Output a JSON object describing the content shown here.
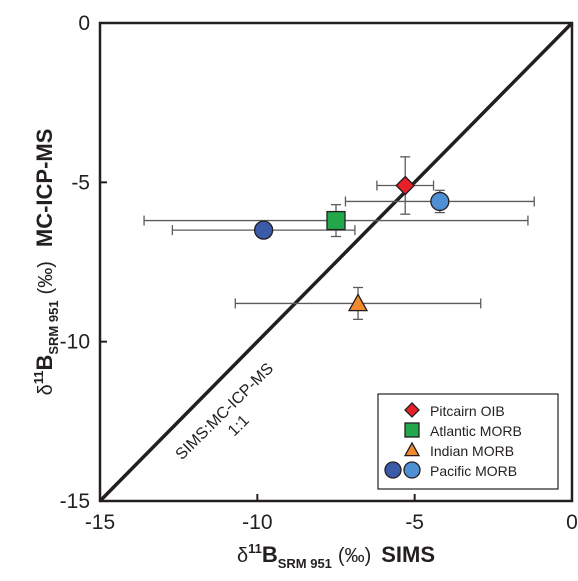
{
  "chart_data": {
    "type": "scatter",
    "xlim": [
      -15,
      0
    ],
    "ylim": [
      -15,
      0
    ],
    "xticks": [
      "-15",
      "-10",
      "-5",
      "0"
    ],
    "yticks": [
      "0",
      "-5",
      "-10",
      "-15"
    ],
    "xlabel": {
      "delta": "δ",
      "super": "11",
      "main": "B",
      "sub": "SRM 951",
      "unit": "(‰)",
      "method": "SIMS"
    },
    "ylabel": {
      "delta": "δ",
      "super": "11",
      "main": "B",
      "sub": "SRM 951",
      "unit": "(‰)",
      "method": "MC-ICP-MS"
    },
    "reference_line": {
      "label_line1": "SIMS:MC-ICP-MS",
      "label_line2": "1:1",
      "from": [
        -15,
        -15
      ],
      "to": [
        0,
        0
      ]
    },
    "grid": false,
    "legend_position": "bottom-right",
    "series": [
      {
        "name": "Pitcairn OIB",
        "marker": "diamond",
        "color": "#e8202a",
        "points": [
          {
            "x": -5.3,
            "y": -5.1,
            "xerr": 0.9,
            "yerr": 0.9
          }
        ]
      },
      {
        "name": "Atlantic MORB",
        "marker": "square",
        "color": "#22a84a",
        "points": [
          {
            "x": -7.5,
            "y": -6.2,
            "xerr": 6.1,
            "yerr": 0.5
          }
        ]
      },
      {
        "name": "Indian MORB",
        "marker": "triangle",
        "color": "#f08a2c",
        "points": [
          {
            "x": -6.8,
            "y": -8.8,
            "xerr": 3.9,
            "yerr": 0.5
          }
        ]
      },
      {
        "name": "Pacific MORB",
        "marker": "circle",
        "colors": [
          "#3b5aa8",
          "#4f8fd4"
        ],
        "points": [
          {
            "x": -9.8,
            "y": -6.5,
            "xerr": 2.9,
            "yerr": 0.0,
            "color": "#3b5aa8"
          },
          {
            "x": -4.2,
            "y": -5.6,
            "xerr": 3.0,
            "yerr": 0.35,
            "color": "#4f8fd4"
          }
        ]
      }
    ]
  }
}
